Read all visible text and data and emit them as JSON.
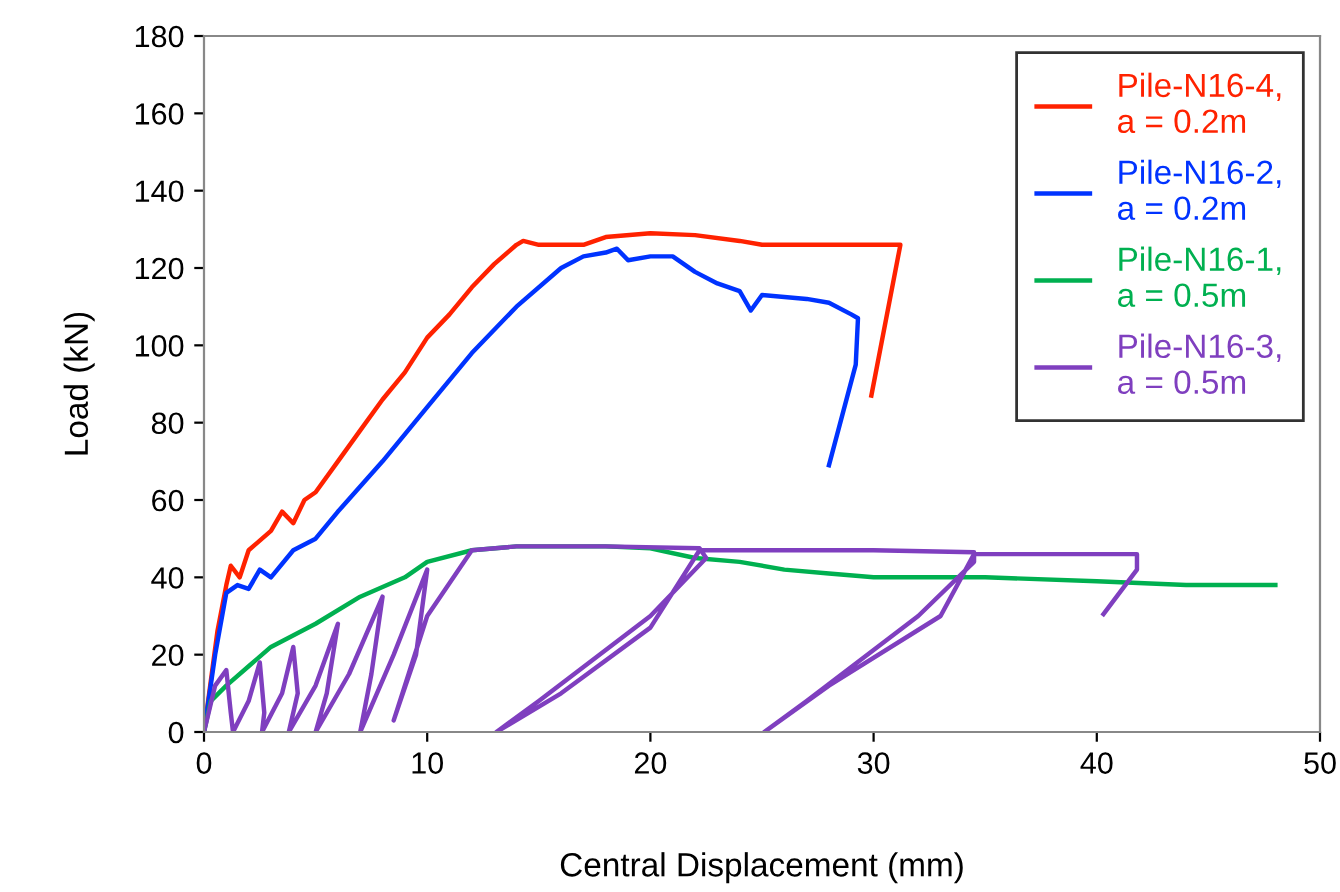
{
  "chart_data": {
    "type": "line",
    "xlabel": "Central Displacement (mm)",
    "ylabel": "Load (kN)",
    "xlim": [
      0,
      50
    ],
    "ylim": [
      0,
      180
    ],
    "xticks": [
      0,
      10,
      20,
      30,
      40,
      50
    ],
    "yticks": [
      0,
      20,
      40,
      60,
      80,
      100,
      120,
      140,
      160,
      180
    ],
    "grid": false,
    "legend": "top right",
    "marker": "none",
    "line_style": "solid",
    "series": [
      {
        "name": "Pile-N16-4,\na = 0.2m",
        "color": "#ff2200",
        "x": [
          0,
          0.6,
          1,
          1.2,
          1.6,
          2,
          3,
          3.5,
          4,
          4.5,
          5,
          6,
          7,
          8,
          9,
          10,
          11,
          12,
          13,
          14,
          14.3,
          15,
          17,
          18,
          20,
          22,
          24,
          25,
          28,
          31.2,
          29.9
        ],
        "values": [
          0,
          26,
          38,
          43,
          40,
          47,
          52,
          57,
          54,
          60,
          62,
          70,
          78,
          86,
          93,
          102,
          108,
          115,
          121,
          126,
          127,
          126,
          126,
          128,
          129,
          128.5,
          127,
          126,
          126,
          126,
          87
        ]
      },
      {
        "name": "Pile-N16-2,\na = 0.2m",
        "color": "#0033ff",
        "x": [
          0,
          0.5,
          1,
          1.5,
          2,
          2.5,
          3,
          4,
          5,
          6,
          8,
          10,
          12,
          14,
          16,
          17,
          18,
          18.5,
          19,
          20,
          21,
          22,
          23,
          24,
          24.5,
          25,
          27,
          28,
          29,
          29.3,
          29.2,
          28
        ],
        "values": [
          0,
          20,
          36,
          38,
          37,
          42,
          40,
          47,
          50,
          57,
          70,
          84,
          98,
          110,
          120,
          123,
          124,
          125,
          122,
          123,
          123,
          119,
          116,
          114,
          109,
          113,
          112,
          111,
          108,
          107,
          95,
          69
        ]
      },
      {
        "name": "Pile-N16-1,\na = 0.5m",
        "color": "#00b050",
        "x": [
          0,
          0.3,
          1,
          2,
          3,
          5,
          7,
          9,
          10,
          12,
          14,
          18,
          20,
          22,
          24,
          26,
          28,
          30,
          35,
          40,
          44,
          48
        ],
        "values": [
          0,
          8,
          12,
          17,
          22,
          28,
          35,
          40,
          44,
          47,
          48,
          48,
          47.5,
          45,
          44,
          42,
          41,
          40,
          40,
          39,
          38,
          38
        ]
      },
      {
        "name": "Pile-N16-3,\na = 0.5m",
        "color": "#7f3fbf",
        "x": [
          0,
          0.5,
          1,
          1.2,
          1.3,
          2,
          2.5,
          2.7,
          2.6,
          3.5,
          4,
          4.2,
          3.8,
          5,
          6,
          5.5,
          5,
          6.5,
          8,
          7.5,
          7,
          8.5,
          10,
          9.5,
          8.5,
          10,
          12,
          14,
          18,
          22.2,
          22.5,
          20,
          15,
          13.1,
          16,
          20,
          22.2,
          30,
          34.5,
          34.5,
          32,
          27,
          25.1,
          28,
          33,
          34.5,
          40,
          41.8,
          41.8,
          40.3
        ],
        "values": [
          0,
          12,
          16,
          5,
          0,
          8,
          18,
          5,
          0,
          10,
          22,
          10,
          0,
          12,
          28,
          10,
          0,
          15,
          35,
          15,
          0,
          20,
          42,
          20,
          3,
          30,
          47,
          48,
          48,
          47.5,
          45,
          30,
          8,
          0,
          10,
          27,
          47,
          47,
          46.5,
          44,
          30,
          8,
          0,
          12,
          30,
          46,
          46,
          46,
          42,
          30.5
        ]
      }
    ]
  }
}
